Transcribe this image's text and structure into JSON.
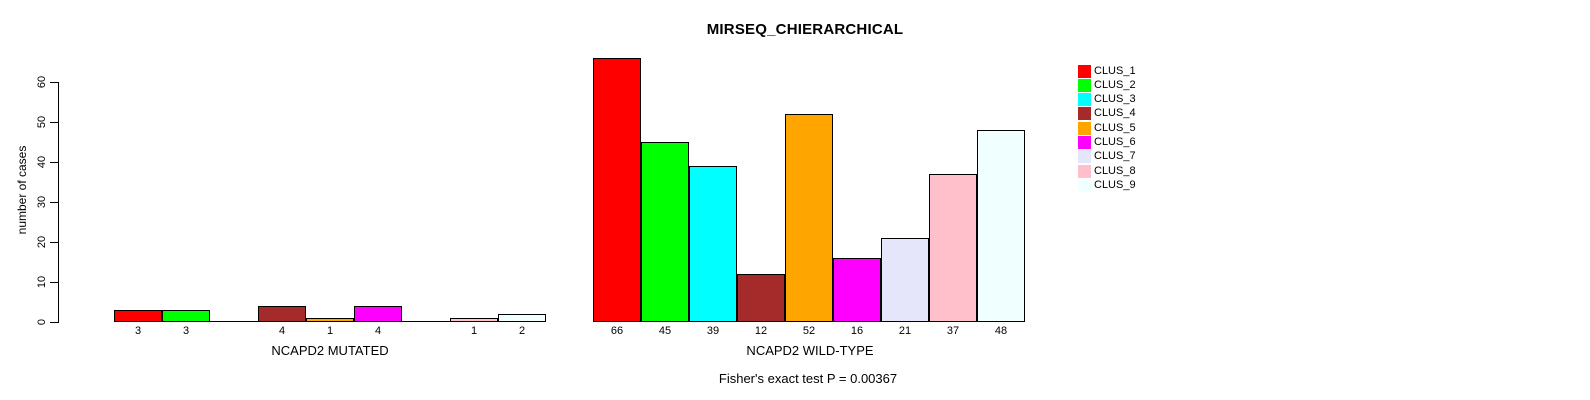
{
  "title": "MIRSEQ_CHIERARCHICAL",
  "footer": "Fisher's exact test P = 0.00367",
  "chart_data": {
    "type": "bar",
    "title": "MIRSEQ_CHIERARCHICAL",
    "ylabel": "number of cases",
    "yticks": [
      0,
      10,
      20,
      30,
      40,
      50,
      60
    ],
    "ylim": [
      0,
      66
    ],
    "grid": false,
    "legend_position": "right",
    "series_names": [
      "CLUS_1",
      "CLUS_2",
      "CLUS_3",
      "CLUS_4",
      "CLUS_5",
      "CLUS_6",
      "CLUS_7",
      "CLUS_8",
      "CLUS_9"
    ],
    "colors": [
      "#FF0000",
      "#00FF00",
      "#00FFFF",
      "#A52A2A",
      "#FFA500",
      "#FF00FF",
      "#E6E6FA",
      "#FFC0CB",
      "#F0FFFF"
    ],
    "groups": [
      {
        "label": "NCAPD2 MUTATED",
        "values": [
          3,
          3,
          0,
          4,
          1,
          4,
          0,
          1,
          2
        ]
      },
      {
        "label": "NCAPD2 WILD-TYPE",
        "values": [
          66,
          45,
          39,
          12,
          52,
          16,
          21,
          37,
          48
        ]
      }
    ],
    "annotation": "Fisher's exact test P = 0.00367"
  },
  "legend": {
    "items": [
      {
        "label": "CLUS_1",
        "color": "#FF0000"
      },
      {
        "label": "CLUS_2",
        "color": "#00FF00"
      },
      {
        "label": "CLUS_3",
        "color": "#00FFFF"
      },
      {
        "label": "CLUS_4",
        "color": "#A52A2A"
      },
      {
        "label": "CLUS_5",
        "color": "#FFA500"
      },
      {
        "label": "CLUS_6",
        "color": "#FF00FF"
      },
      {
        "label": "CLUS_7",
        "color": "#E6E6FA"
      },
      {
        "label": "CLUS_8",
        "color": "#FFC0CB"
      },
      {
        "label": "CLUS_9",
        "color": "#F0FFFF"
      }
    ]
  }
}
